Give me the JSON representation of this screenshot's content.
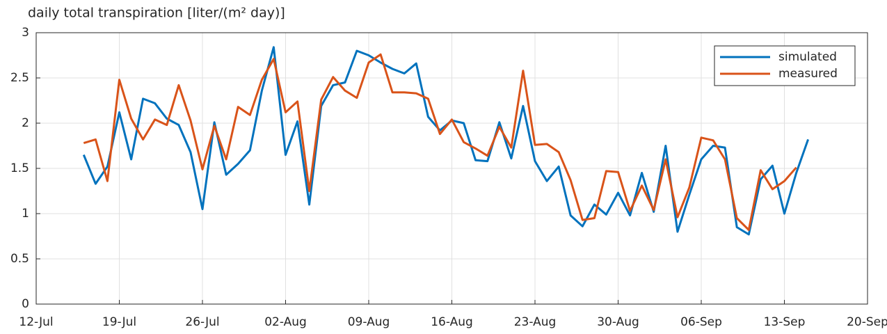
{
  "chart_data": {
    "type": "line",
    "title": "daily total transpiration [liter/(m² day)]",
    "x": [
      "16-Jul",
      "17-Jul",
      "18-Jul",
      "19-Jul",
      "20-Jul",
      "21-Jul",
      "22-Jul",
      "23-Jul",
      "24-Jul",
      "25-Jul",
      "26-Jul",
      "27-Jul",
      "28-Jul",
      "29-Jul",
      "30-Jul",
      "31-Jul",
      "01-Aug",
      "02-Aug",
      "03-Aug",
      "04-Aug",
      "05-Aug",
      "06-Aug",
      "07-Aug",
      "08-Aug",
      "09-Aug",
      "10-Aug",
      "11-Aug",
      "12-Aug",
      "13-Aug",
      "14-Aug",
      "15-Aug",
      "16-Aug",
      "17-Aug",
      "18-Aug",
      "19-Aug",
      "20-Aug",
      "21-Aug",
      "22-Aug",
      "23-Aug",
      "24-Aug",
      "25-Aug",
      "26-Aug",
      "27-Aug",
      "28-Aug",
      "29-Aug",
      "30-Aug",
      "31-Aug",
      "01-Sep",
      "02-Sep",
      "03-Sep",
      "04-Sep",
      "05-Sep",
      "06-Sep",
      "07-Sep",
      "08-Sep",
      "09-Sep",
      "10-Sep",
      "11-Sep",
      "12-Sep",
      "13-Sep",
      "14-Sep",
      "15-Sep"
    ],
    "series": [
      {
        "name": "simulated",
        "color": "#0072bd",
        "values": [
          1.65,
          1.33,
          1.52,
          2.12,
          1.6,
          2.27,
          2.22,
          2.05,
          1.98,
          1.68,
          1.05,
          2.01,
          1.43,
          1.55,
          1.7,
          2.36,
          2.84,
          1.65,
          2.02,
          1.1,
          2.19,
          2.42,
          2.45,
          2.8,
          2.75,
          2.67,
          2.6,
          2.55,
          2.66,
          2.07,
          1.92,
          2.03,
          2.0,
          1.59,
          1.58,
          2.01,
          1.61,
          2.19,
          1.58,
          1.36,
          1.52,
          0.98,
          0.86,
          1.1,
          0.99,
          1.23,
          0.98,
          1.45,
          1.02,
          1.75,
          0.8,
          1.21,
          1.6,
          1.75,
          1.73,
          0.85,
          0.77,
          1.38,
          1.53,
          1.0,
          1.45,
          1.82
        ]
      },
      {
        "name": "measured",
        "color": "#d95319",
        "values": [
          1.78,
          1.82,
          1.36,
          2.48,
          2.05,
          1.82,
          2.04,
          1.98,
          2.42,
          2.03,
          1.49,
          1.97,
          1.6,
          2.18,
          2.09,
          2.48,
          2.71,
          2.12,
          2.24,
          1.25,
          2.26,
          2.51,
          2.36,
          2.28,
          2.67,
          2.76,
          2.34,
          2.34,
          2.33,
          2.27,
          1.88,
          2.04,
          1.79,
          1.72,
          1.64,
          1.96,
          1.73,
          2.58,
          1.76,
          1.77,
          1.68,
          1.37,
          0.93,
          0.95,
          1.47,
          1.46,
          1.03,
          1.31,
          1.04,
          1.6,
          0.96,
          1.29,
          1.84,
          1.81,
          1.6,
          0.95,
          0.82,
          1.48,
          1.27,
          1.36,
          1.51,
          null
        ]
      }
    ],
    "xlim": [
      "12-Jul",
      "20-Sep"
    ],
    "xticks": [
      "12-Jul",
      "19-Jul",
      "26-Jul",
      "02-Aug",
      "09-Aug",
      "16-Aug",
      "23-Aug",
      "30-Aug",
      "06-Sep",
      "13-Sep",
      "20-Sep"
    ],
    "ylim": [
      0,
      3
    ],
    "yticks": [
      0,
      0.5,
      1,
      1.5,
      2,
      2.5,
      3
    ],
    "grid": true,
    "legend": "northeast"
  }
}
